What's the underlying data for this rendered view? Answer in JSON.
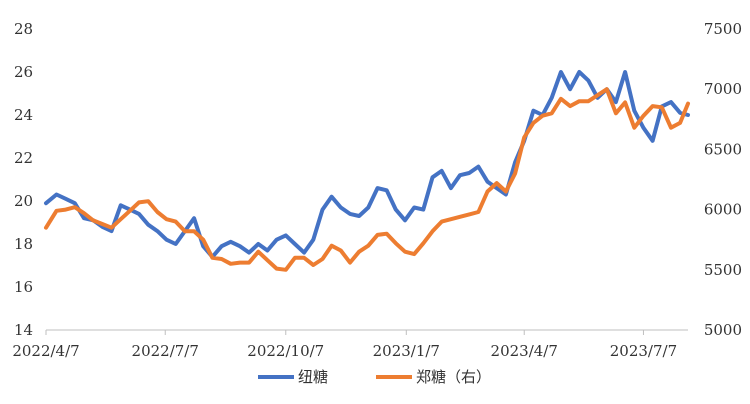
{
  "chart_data": {
    "type": "line",
    "title": "",
    "x_ticks": [
      "2022/4/7",
      "2022/7/7",
      "2022/10/7",
      "2023/1/7",
      "2023/4/7",
      "2023/7/7"
    ],
    "x_range": [
      "2022-04-07",
      "2023-08-10"
    ],
    "y_left": {
      "min": 14,
      "max": 28,
      "ticks": [
        14,
        16,
        18,
        20,
        22,
        24,
        26,
        28
      ]
    },
    "y_right": {
      "min": 5000,
      "max": 7500,
      "ticks": [
        5000,
        5500,
        6000,
        6500,
        7000,
        7500
      ]
    },
    "grid": false,
    "legend_position": "bottom",
    "series": [
      {
        "name": "纽糖",
        "axis": "left",
        "color": "#4472C4",
        "points": [
          [
            "2022-04-07",
            19.9
          ],
          [
            "2022-04-15",
            20.3
          ],
          [
            "2022-04-22",
            20.1
          ],
          [
            "2022-04-29",
            19.9
          ],
          [
            "2022-05-06",
            19.2
          ],
          [
            "2022-05-13",
            19.1
          ],
          [
            "2022-05-20",
            18.8
          ],
          [
            "2022-05-27",
            18.6
          ],
          [
            "2022-06-03",
            19.8
          ],
          [
            "2022-06-10",
            19.6
          ],
          [
            "2022-06-17",
            19.4
          ],
          [
            "2022-06-24",
            18.9
          ],
          [
            "2022-07-01",
            18.6
          ],
          [
            "2022-07-08",
            18.2
          ],
          [
            "2022-07-15",
            18.0
          ],
          [
            "2022-07-22",
            18.6
          ],
          [
            "2022-07-29",
            19.2
          ],
          [
            "2022-08-05",
            17.9
          ],
          [
            "2022-08-12",
            17.4
          ],
          [
            "2022-08-19",
            17.9
          ],
          [
            "2022-08-26",
            18.1
          ],
          [
            "2022-09-02",
            17.9
          ],
          [
            "2022-09-09",
            17.6
          ],
          [
            "2022-09-16",
            18.0
          ],
          [
            "2022-09-23",
            17.7
          ],
          [
            "2022-09-30",
            18.2
          ],
          [
            "2022-10-07",
            18.4
          ],
          [
            "2022-10-14",
            18.0
          ],
          [
            "2022-10-21",
            17.6
          ],
          [
            "2022-10-28",
            18.2
          ],
          [
            "2022-11-04",
            19.6
          ],
          [
            "2022-11-11",
            20.2
          ],
          [
            "2022-11-18",
            19.7
          ],
          [
            "2022-11-25",
            19.4
          ],
          [
            "2022-12-02",
            19.3
          ],
          [
            "2022-12-09",
            19.7
          ],
          [
            "2022-12-16",
            20.6
          ],
          [
            "2022-12-23",
            20.5
          ],
          [
            "2022-12-30",
            19.6
          ],
          [
            "2023-01-06",
            19.1
          ],
          [
            "2023-01-13",
            19.7
          ],
          [
            "2023-01-20",
            19.6
          ],
          [
            "2023-01-27",
            21.1
          ],
          [
            "2023-02-03",
            21.4
          ],
          [
            "2023-02-10",
            20.6
          ],
          [
            "2023-02-17",
            21.2
          ],
          [
            "2023-02-24",
            21.3
          ],
          [
            "2023-03-03",
            21.6
          ],
          [
            "2023-03-10",
            20.9
          ],
          [
            "2023-03-17",
            20.6
          ],
          [
            "2023-03-24",
            20.3
          ],
          [
            "2023-03-31",
            21.8
          ],
          [
            "2023-04-07",
            22.8
          ],
          [
            "2023-04-14",
            24.2
          ],
          [
            "2023-04-21",
            24.0
          ],
          [
            "2023-04-28",
            24.8
          ],
          [
            "2023-05-05",
            26.0
          ],
          [
            "2023-05-12",
            25.2
          ],
          [
            "2023-05-19",
            26.0
          ],
          [
            "2023-05-26",
            25.6
          ],
          [
            "2023-06-02",
            24.8
          ],
          [
            "2023-06-09",
            25.2
          ],
          [
            "2023-06-16",
            24.6
          ],
          [
            "2023-06-23",
            26.0
          ],
          [
            "2023-06-30",
            24.2
          ],
          [
            "2023-07-07",
            23.4
          ],
          [
            "2023-07-14",
            22.8
          ],
          [
            "2023-07-21",
            24.4
          ],
          [
            "2023-07-28",
            24.6
          ],
          [
            "2023-08-04",
            24.1
          ],
          [
            "2023-08-10",
            24.0
          ]
        ]
      },
      {
        "name": "郑糖（右）",
        "axis": "right",
        "color": "#ED7D31",
        "points": [
          [
            "2022-04-07",
            5850
          ],
          [
            "2022-04-15",
            5990
          ],
          [
            "2022-04-22",
            6000
          ],
          [
            "2022-04-29",
            6020
          ],
          [
            "2022-05-06",
            5970
          ],
          [
            "2022-05-13",
            5910
          ],
          [
            "2022-05-20",
            5880
          ],
          [
            "2022-05-27",
            5850
          ],
          [
            "2022-06-03",
            5920
          ],
          [
            "2022-06-10",
            5990
          ],
          [
            "2022-06-17",
            6060
          ],
          [
            "2022-06-24",
            6070
          ],
          [
            "2022-07-01",
            5980
          ],
          [
            "2022-07-08",
            5920
          ],
          [
            "2022-07-15",
            5900
          ],
          [
            "2022-07-22",
            5820
          ],
          [
            "2022-07-29",
            5820
          ],
          [
            "2022-08-05",
            5750
          ],
          [
            "2022-08-12",
            5600
          ],
          [
            "2022-08-19",
            5590
          ],
          [
            "2022-08-26",
            5550
          ],
          [
            "2022-09-02",
            5560
          ],
          [
            "2022-09-09",
            5560
          ],
          [
            "2022-09-16",
            5650
          ],
          [
            "2022-09-23",
            5580
          ],
          [
            "2022-09-30",
            5510
          ],
          [
            "2022-10-07",
            5500
          ],
          [
            "2022-10-14",
            5600
          ],
          [
            "2022-10-21",
            5600
          ],
          [
            "2022-10-28",
            5540
          ],
          [
            "2022-11-04",
            5590
          ],
          [
            "2022-11-11",
            5700
          ],
          [
            "2022-11-18",
            5660
          ],
          [
            "2022-11-25",
            5560
          ],
          [
            "2022-12-02",
            5650
          ],
          [
            "2022-12-09",
            5700
          ],
          [
            "2022-12-16",
            5790
          ],
          [
            "2022-12-23",
            5800
          ],
          [
            "2022-12-30",
            5720
          ],
          [
            "2023-01-06",
            5650
          ],
          [
            "2023-01-13",
            5630
          ],
          [
            "2023-01-20",
            5720
          ],
          [
            "2023-01-27",
            5820
          ],
          [
            "2023-02-03",
            5900
          ],
          [
            "2023-02-10",
            5920
          ],
          [
            "2023-02-17",
            5940
          ],
          [
            "2023-02-24",
            5960
          ],
          [
            "2023-03-03",
            5980
          ],
          [
            "2023-03-10",
            6150
          ],
          [
            "2023-03-17",
            6220
          ],
          [
            "2023-03-24",
            6150
          ],
          [
            "2023-03-31",
            6300
          ],
          [
            "2023-04-07",
            6600
          ],
          [
            "2023-04-14",
            6720
          ],
          [
            "2023-04-21",
            6780
          ],
          [
            "2023-04-28",
            6800
          ],
          [
            "2023-05-05",
            6920
          ],
          [
            "2023-05-12",
            6860
          ],
          [
            "2023-05-19",
            6900
          ],
          [
            "2023-05-26",
            6900
          ],
          [
            "2023-06-02",
            6950
          ],
          [
            "2023-06-09",
            7000
          ],
          [
            "2023-06-16",
            6800
          ],
          [
            "2023-06-23",
            6890
          ],
          [
            "2023-06-30",
            6680
          ],
          [
            "2023-07-07",
            6780
          ],
          [
            "2023-07-14",
            6860
          ],
          [
            "2023-07-21",
            6850
          ],
          [
            "2023-07-28",
            6680
          ],
          [
            "2023-08-04",
            6720
          ],
          [
            "2023-08-10",
            6880
          ]
        ]
      }
    ]
  }
}
